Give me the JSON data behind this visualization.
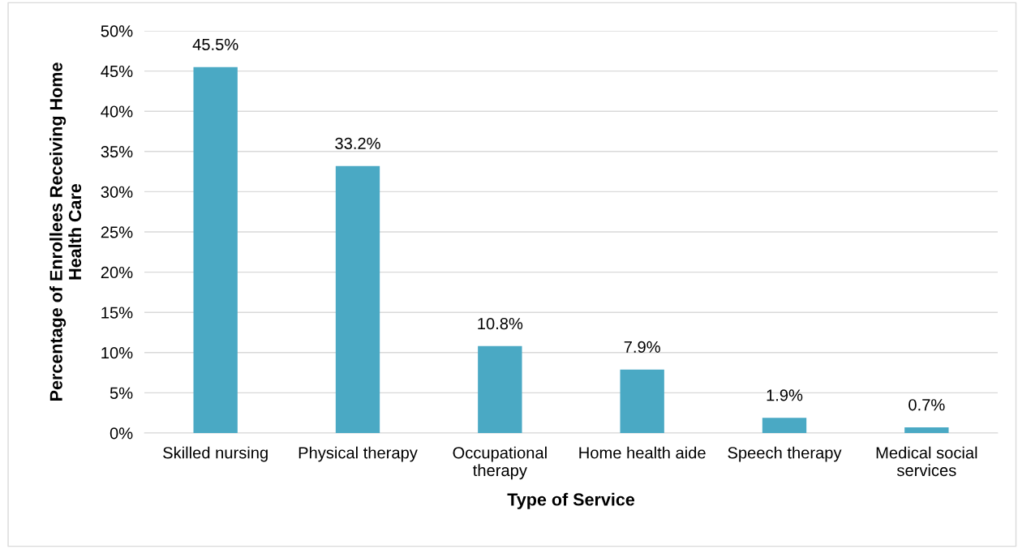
{
  "chart_data": {
    "type": "bar",
    "xlabel": "Type of Service",
    "ylabel": "Percentage of Enrollees Receiving Home\nHealth Care",
    "categories": [
      "Skilled nursing",
      "Physical therapy",
      "Occupational\ntherapy",
      "Home health aide",
      "Speech therapy",
      "Medical social\nservices"
    ],
    "values": [
      45.5,
      33.2,
      10.8,
      7.9,
      1.9,
      0.7
    ],
    "value_labels": [
      "45.5%",
      "33.2%",
      "10.8%",
      "7.9%",
      "1.9%",
      "0.7%"
    ],
    "color": "#4aa9c4",
    "ylim": [
      0,
      50
    ],
    "yticks": [
      {
        "value": 0,
        "label": "0%"
      },
      {
        "value": 5,
        "label": "5%"
      },
      {
        "value": 10,
        "label": "10%"
      },
      {
        "value": 15,
        "label": "15%"
      },
      {
        "value": 20,
        "label": "20%"
      },
      {
        "value": 25,
        "label": "25%"
      },
      {
        "value": 30,
        "label": "30%"
      },
      {
        "value": 35,
        "label": "35%"
      },
      {
        "value": 40,
        "label": "40%"
      },
      {
        "value": 45,
        "label": "45%"
      },
      {
        "value": 50,
        "label": "50%"
      }
    ],
    "grid": "y",
    "legend": false
  }
}
